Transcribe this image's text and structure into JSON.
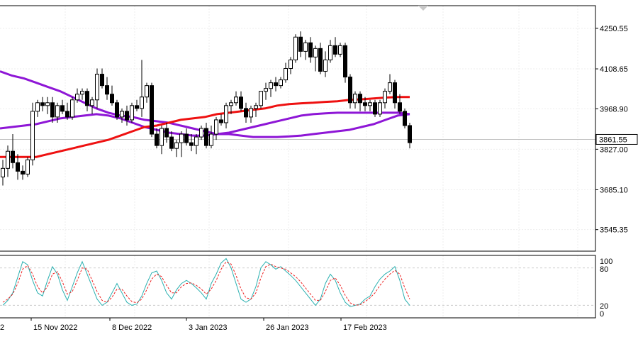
{
  "chart_data": [
    {
      "type": "candlestick",
      "title": "",
      "y_ticks": [
        "4250.55",
        "4108.65",
        "3968.90",
        "3827.00",
        "3685.10",
        "3545.35"
      ],
      "ylim": [
        3470,
        4330
      ],
      "current_price": "3861.55",
      "x_ticks": [
        "15 Nov 2022",
        "8 Dec 2022",
        "3 Jan 2023",
        "26 Jan 2023",
        "17 Feb 2023"
      ],
      "x_partial_left_tick": "2",
      "grid": true,
      "candles": [
        [
          3730,
          3790,
          3700,
          3760
        ],
        [
          3760,
          3840,
          3730,
          3820
        ],
        [
          3820,
          3880,
          3760,
          3780
        ],
        [
          3780,
          3810,
          3720,
          3750
        ],
        [
          3750,
          3770,
          3720,
          3740
        ],
        [
          3740,
          3800,
          3730,
          3790
        ],
        [
          3790,
          3990,
          3770,
          3960
        ],
        [
          3960,
          4000,
          3940,
          3990
        ],
        [
          3990,
          4010,
          3960,
          3980
        ],
        [
          3980,
          4010,
          3950,
          3990
        ],
        [
          3990,
          4010,
          3920,
          3940
        ],
        [
          3940,
          3990,
          3920,
          3980
        ],
        [
          3980,
          4000,
          3950,
          3960
        ],
        [
          3960,
          3990,
          3930,
          3940
        ],
        [
          3940,
          4010,
          3930,
          4000
        ],
        [
          4000,
          4040,
          3990,
          4020
        ],
        [
          4020,
          4040,
          4000,
          4030
        ],
        [
          4030,
          4040,
          3960,
          3980
        ],
        [
          3980,
          4010,
          3950,
          4000
        ],
        [
          4000,
          4110,
          3970,
          4090
        ],
        [
          4090,
          4110,
          4040,
          4050
        ],
        [
          4050,
          4080,
          4000,
          4020
        ],
        [
          4020,
          4050,
          3980,
          3990
        ],
        [
          3990,
          4000,
          3930,
          3940
        ],
        [
          3940,
          3970,
          3920,
          3960
        ],
        [
          3960,
          3980,
          3910,
          3930
        ],
        [
          3930,
          3990,
          3920,
          3980
        ],
        [
          3980,
          4000,
          3960,
          3970
        ],
        [
          3970,
          4140,
          3940,
          4010
        ],
        [
          4010,
          4060,
          3990,
          4050
        ],
        [
          4050,
          4060,
          3870,
          3880
        ],
        [
          3880,
          3900,
          3830,
          3840
        ],
        [
          3840,
          3910,
          3810,
          3900
        ],
        [
          3900,
          3920,
          3850,
          3870
        ],
        [
          3870,
          3890,
          3820,
          3830
        ],
        [
          3830,
          3860,
          3800,
          3850
        ],
        [
          3850,
          3890,
          3800,
          3880
        ],
        [
          3880,
          3900,
          3840,
          3850
        ],
        [
          3850,
          3880,
          3820,
          3840
        ],
        [
          3840,
          3880,
          3810,
          3870
        ],
        [
          3870,
          3910,
          3860,
          3900
        ],
        [
          3900,
          3920,
          3830,
          3840
        ],
        [
          3840,
          3910,
          3830,
          3880
        ],
        [
          3880,
          3940,
          3860,
          3930
        ],
        [
          3930,
          3950,
          3910,
          3920
        ],
        [
          3920,
          3990,
          3900,
          3980
        ],
        [
          3980,
          4000,
          3950,
          3990
        ],
        [
          3990,
          4030,
          3980,
          4010
        ],
        [
          4010,
          4030,
          3960,
          3970
        ],
        [
          3970,
          3990,
          3920,
          3940
        ],
        [
          3940,
          3980,
          3920,
          3970
        ],
        [
          3970,
          3990,
          3940,
          3980
        ],
        [
          3980,
          4030,
          3970,
          4030
        ],
        [
          4030,
          4060,
          4000,
          4040
        ],
        [
          4040,
          4070,
          4010,
          4060
        ],
        [
          4060,
          4080,
          4030,
          4050
        ],
        [
          4050,
          4080,
          4040,
          4070
        ],
        [
          4070,
          4130,
          4060,
          4110
        ],
        [
          4110,
          4150,
          4090,
          4140
        ],
        [
          4140,
          4230,
          4130,
          4220
        ],
        [
          4220,
          4240,
          4150,
          4170
        ],
        [
          4170,
          4210,
          4140,
          4200
        ],
        [
          4200,
          4220,
          4130,
          4150
        ],
        [
          4150,
          4190,
          4100,
          4180
        ],
        [
          4180,
          4200,
          4090,
          4100
        ],
        [
          4100,
          4170,
          4080,
          4140
        ],
        [
          4140,
          4210,
          4130,
          4190
        ],
        [
          4190,
          4220,
          4150,
          4160
        ],
        [
          4160,
          4200,
          4150,
          4190
        ],
        [
          4190,
          4200,
          4060,
          4080
        ],
        [
          4080,
          4090,
          3970,
          3990
        ],
        [
          3990,
          4030,
          3970,
          4020
        ],
        [
          4020,
          4030,
          3960,
          3990
        ],
        [
          3990,
          4010,
          3960,
          3980
        ],
        [
          3980,
          4000,
          3960,
          3990
        ],
        [
          3990,
          4000,
          3940,
          3950
        ],
        [
          3950,
          4000,
          3940,
          3990
        ],
        [
          3990,
          4040,
          3970,
          4030
        ],
        [
          4030,
          4090,
          4020,
          4060
        ],
        [
          4060,
          4070,
          3970,
          3990
        ],
        [
          3990,
          4020,
          3950,
          3960
        ],
        [
          3960,
          3970,
          3900,
          3910
        ],
        [
          3910,
          3920,
          3830,
          3850
        ]
      ],
      "ma_red": [
        3800,
        3800,
        3800,
        3800,
        3810,
        3820,
        3830,
        3840,
        3850,
        3860,
        3875,
        3890,
        3905,
        3910,
        3920,
        3930,
        3935,
        3940,
        3950,
        3955,
        3960,
        3965,
        3970,
        3980,
        3985,
        3988,
        3990,
        3993,
        3995,
        4000,
        4002,
        4005,
        4008,
        4010,
        4010
      ],
      "ma_purple_upper": [
        4100,
        4085,
        4075,
        4060,
        4045,
        4030,
        4010,
        3990,
        3970,
        3955,
        3945,
        3940,
        3930,
        3925,
        3920,
        3910,
        3900,
        3890,
        3880,
        3880,
        3875,
        3870,
        3870,
        3870,
        3872,
        3875,
        3880,
        3885,
        3890,
        3895,
        3905,
        3915,
        3930,
        3945,
        3950
      ],
      "ma_purple_lower": [
        3900,
        3905,
        3910,
        3915,
        3925,
        3935,
        3940,
        3945,
        3950,
        3945,
        3935,
        3920,
        3905,
        3895,
        3885,
        3880,
        3875,
        3875,
        3880,
        3885,
        3895,
        3905,
        3915,
        3925,
        3935,
        3945,
        3950,
        3953,
        3955,
        3955,
        3955,
        3955,
        3955,
        3955,
        3950
      ],
      "stochastic": {
        "scale_labels": [
          "100",
          "80",
          "20",
          "0"
        ],
        "main": [
          20,
          28,
          40,
          65,
          90,
          85,
          60,
          40,
          35,
          60,
          82,
          70,
          45,
          28,
          50,
          72,
          90,
          70,
          50,
          30,
          20,
          25,
          40,
          55,
          40,
          25,
          20,
          22,
          35,
          55,
          72,
          75,
          60,
          40,
          30,
          45,
          55,
          60,
          55,
          48,
          40,
          30,
          55,
          70,
          88,
          95,
          80,
          55,
          30,
          25,
          30,
          50,
          80,
          90,
          85,
          78,
          82,
          75,
          68,
          60,
          50,
          40,
          30,
          20,
          30,
          55,
          70,
          60,
          40,
          25,
          18,
          20,
          22,
          30,
          35,
          50,
          62,
          70,
          75,
          82,
          60,
          30,
          20
        ],
        "signal": [
          25,
          30,
          38,
          55,
          78,
          84,
          70,
          50,
          40,
          50,
          70,
          74,
          58,
          38,
          42,
          60,
          80,
          78,
          60,
          42,
          28,
          25,
          33,
          46,
          46,
          35,
          26,
          24,
          30,
          45,
          62,
          70,
          66,
          52,
          40,
          40,
          50,
          55,
          56,
          52,
          46,
          38,
          46,
          60,
          78,
          90,
          86,
          68,
          46,
          32,
          30,
          40,
          64,
          82,
          86,
          82,
          80,
          78,
          72,
          66,
          58,
          48,
          38,
          28,
          28,
          42,
          60,
          64,
          52,
          36,
          24,
          20,
          21,
          26,
          32,
          40,
          52,
          62,
          70,
          76,
          70,
          48,
          30
        ]
      }
    }
  ]
}
